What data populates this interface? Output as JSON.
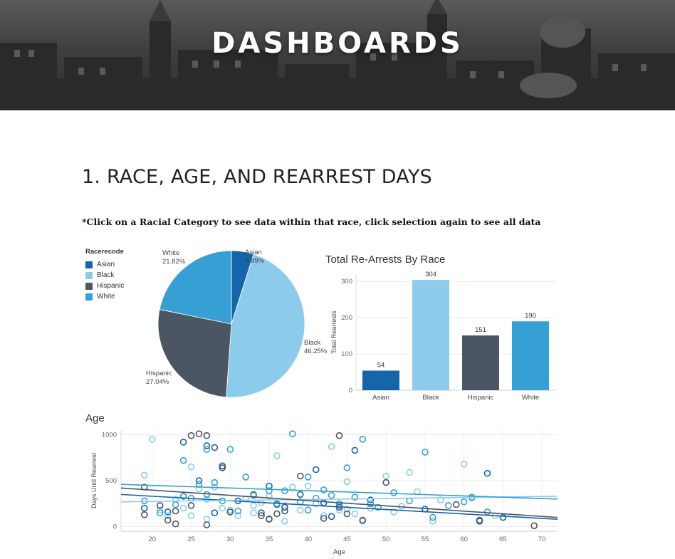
{
  "header": {
    "title": "DASHBOARDS"
  },
  "section": {
    "title": "1. RACE, AGE, AND REARREST DAYS",
    "instruction": "*Click on a Racial Category to see data within that race, click selection again to see all data"
  },
  "legend": {
    "title": "Racerecode",
    "items": [
      {
        "label": "Asian",
        "color": "#1565a8"
      },
      {
        "label": "Black",
        "color": "#8ccbeb"
      },
      {
        "label": "Hispanic",
        "color": "#4b5563"
      },
      {
        "label": "White",
        "color": "#36a0d4"
      }
    ]
  },
  "chart_data": [
    {
      "type": "pie",
      "title": "",
      "slices": [
        {
          "label": "Asian",
          "percent": "4.89%",
          "value": 4.89,
          "color": "#1565a8"
        },
        {
          "label": "Black",
          "percent": "46.25%",
          "value": 46.25,
          "color": "#8ccbeb"
        },
        {
          "label": "Hispanic",
          "percent": "27.04%",
          "value": 27.04,
          "color": "#4b5563"
        },
        {
          "label": "White",
          "percent": "21.82%",
          "value": 21.82,
          "color": "#36a0d4"
        }
      ]
    },
    {
      "type": "bar",
      "title": "Total Re-Arrests By Race",
      "ylabel": "Total Rearrests",
      "categories": [
        "Asian",
        "Black",
        "Hispanic",
        "White"
      ],
      "values": [
        54,
        304,
        151,
        190
      ],
      "colors": [
        "#1565a8",
        "#8ccbeb",
        "#4b5563",
        "#36a0d4"
      ],
      "ylim": [
        0,
        320
      ],
      "yticks": [
        0,
        100,
        200,
        300
      ],
      "grid": true
    },
    {
      "type": "scatter",
      "title": "Age",
      "xlabel": "Age",
      "ylabel": "Days Until Rearrest",
      "xlim": [
        16,
        72
      ],
      "ylim": [
        -50,
        1050
      ],
      "xticks": [
        20,
        25,
        30,
        35,
        40,
        45,
        50,
        55,
        60,
        65,
        70
      ],
      "yticks": [
        0,
        500,
        1000
      ],
      "grid": true,
      "series": [
        {
          "group": "Asian",
          "color": "#1565a8",
          "points": [
            [
              19,
              200
            ],
            [
              22,
              160
            ],
            [
              24,
              920
            ],
            [
              24,
              330
            ],
            [
              26,
              500
            ],
            [
              27,
              880
            ],
            [
              28,
              150
            ],
            [
              29,
              640
            ],
            [
              31,
              280
            ],
            [
              34,
              150
            ],
            [
              35,
              440
            ],
            [
              36,
              240
            ],
            [
              37,
              170
            ],
            [
              39,
              350
            ],
            [
              41,
              620
            ],
            [
              42,
              260
            ],
            [
              43,
              110
            ],
            [
              44,
              230
            ],
            [
              46,
              830
            ],
            [
              48,
              290
            ],
            [
              55,
              190
            ],
            [
              62,
              70
            ],
            [
              63,
              580
            ],
            [
              65,
              100
            ]
          ],
          "trend": [
            [
              16,
              350
            ],
            [
              72,
              80
            ]
          ]
        },
        {
          "group": "Black",
          "color": "#8ccbeb",
          "points": [
            [
              19,
              560
            ],
            [
              20,
              950
            ],
            [
              21,
              180
            ],
            [
              22,
              120
            ],
            [
              23,
              300
            ],
            [
              24,
              200
            ],
            [
              25,
              650
            ],
            [
              25,
              120
            ],
            [
              26,
              410
            ],
            [
              27,
              300
            ],
            [
              27,
              80
            ],
            [
              28,
              430
            ],
            [
              29,
              200
            ],
            [
              30,
              180
            ],
            [
              31,
              120
            ],
            [
              32,
              300
            ],
            [
              33,
              230
            ],
            [
              33,
              150
            ],
            [
              34,
              260
            ],
            [
              35,
              90
            ],
            [
              35,
              330
            ],
            [
              36,
              770
            ],
            [
              37,
              230
            ],
            [
              37,
              60
            ],
            [
              38,
              430
            ],
            [
              39,
              180
            ],
            [
              40,
              440
            ],
            [
              41,
              250
            ],
            [
              42,
              120
            ],
            [
              43,
              870
            ],
            [
              44,
              180
            ],
            [
              45,
              490
            ],
            [
              45,
              190
            ],
            [
              46,
              140
            ],
            [
              47,
              60
            ],
            [
              48,
              200
            ],
            [
              50,
              550
            ],
            [
              51,
              160
            ],
            [
              52,
              220
            ],
            [
              53,
              590
            ],
            [
              54,
              380
            ],
            [
              56,
              60
            ],
            [
              57,
              290
            ],
            [
              60,
              680
            ],
            [
              61,
              310
            ],
            [
              64,
              120
            ]
          ],
          "trend": [
            [
              16,
              270
            ],
            [
              72,
              330
            ]
          ]
        },
        {
          "group": "Hispanic",
          "color": "#4b5563",
          "points": [
            [
              19,
              130
            ],
            [
              19,
              430
            ],
            [
              21,
              230
            ],
            [
              22,
              70
            ],
            [
              23,
              30
            ],
            [
              23,
              170
            ],
            [
              25,
              990
            ],
            [
              25,
              230
            ],
            [
              26,
              1010
            ],
            [
              27,
              990
            ],
            [
              27,
              20
            ],
            [
              28,
              860
            ],
            [
              29,
              660
            ],
            [
              30,
              160
            ],
            [
              33,
              350
            ],
            [
              34,
              120
            ],
            [
              35,
              80
            ],
            [
              36,
              140
            ],
            [
              37,
              210
            ],
            [
              39,
              550
            ],
            [
              42,
              90
            ],
            [
              44,
              990
            ],
            [
              44,
              210
            ],
            [
              45,
              140
            ],
            [
              47,
              70
            ],
            [
              50,
              480
            ],
            [
              59,
              240
            ],
            [
              62,
              60
            ],
            [
              69,
              10
            ]
          ],
          "trend": [
            [
              16,
              420
            ],
            [
              72,
              100
            ]
          ]
        },
        {
          "group": "White",
          "color": "#36a0d4",
          "points": [
            [
              19,
              280
            ],
            [
              21,
              150
            ],
            [
              23,
              240
            ],
            [
              24,
              720
            ],
            [
              24,
              330
            ],
            [
              25,
              310
            ],
            [
              26,
              460
            ],
            [
              27,
              840
            ],
            [
              27,
              350
            ],
            [
              28,
              480
            ],
            [
              29,
              280
            ],
            [
              30,
              840
            ],
            [
              31,
              170
            ],
            [
              32,
              540
            ],
            [
              33,
              340
            ],
            [
              35,
              390
            ],
            [
              36,
              250
            ],
            [
              37,
              390
            ],
            [
              38,
              1010
            ],
            [
              39,
              270
            ],
            [
              40,
              540
            ],
            [
              40,
              180
            ],
            [
              41,
              310
            ],
            [
              42,
              400
            ],
            [
              43,
              340
            ],
            [
              44,
              250
            ],
            [
              45,
              640
            ],
            [
              46,
              320
            ],
            [
              47,
              950
            ],
            [
              48,
              250
            ],
            [
              49,
              210
            ],
            [
              51,
              370
            ],
            [
              53,
              280
            ],
            [
              55,
              810
            ],
            [
              56,
              100
            ],
            [
              58,
              230
            ],
            [
              60,
              270
            ],
            [
              61,
              320
            ],
            [
              63,
              160
            ]
          ],
          "trend": [
            [
              16,
              460
            ],
            [
              72,
              300
            ]
          ]
        }
      ]
    }
  ]
}
